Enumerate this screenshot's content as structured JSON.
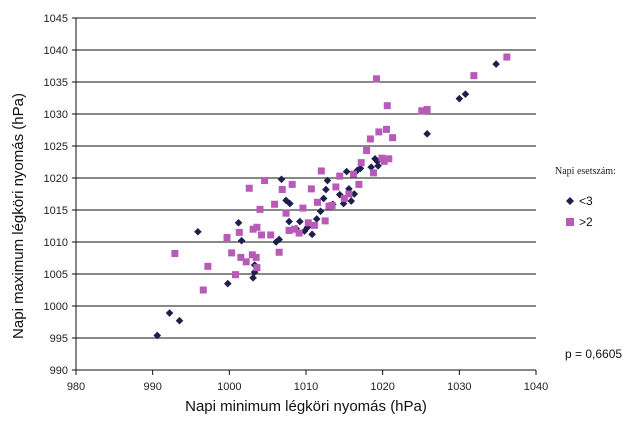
{
  "chart_data": {
    "type": "scatter",
    "xlabel": "Napi minimum légköri nyomás (hPa)",
    "ylabel": "Napi maximum légköri nyomás (hPa)",
    "xlim": [
      980,
      1040
    ],
    "ylim": [
      990,
      1045
    ],
    "x_ticks": [
      980,
      990,
      1000,
      1010,
      1020,
      1030,
      1040
    ],
    "y_ticks": [
      990,
      995,
      1000,
      1005,
      1010,
      1015,
      1020,
      1025,
      1030,
      1035,
      1040,
      1045
    ],
    "grid": "horizontal",
    "legend": {
      "title": "Napi esetszám:",
      "placement": "right"
    },
    "annotation": "p = 0,6605",
    "series": [
      {
        "name": "<3",
        "marker": "diamond",
        "color": "#1f1f4d",
        "points": [
          [
            990.6,
            995.4
          ],
          [
            992.2,
            998.9
          ],
          [
            993.5,
            997.7
          ],
          [
            995.9,
            1011.6
          ],
          [
            999.8,
            1003.5
          ],
          [
            1001.2,
            1013.0
          ],
          [
            1001.6,
            1010.2
          ],
          [
            1003.1,
            1004.4
          ],
          [
            1003.3,
            1005.3
          ],
          [
            1003.3,
            1006.4
          ],
          [
            1006.1,
            1010.0
          ],
          [
            1006.5,
            1010.4
          ],
          [
            1006.8,
            1019.8
          ],
          [
            1007.4,
            1016.5
          ],
          [
            1007.9,
            1016.0
          ],
          [
            1007.8,
            1013.2
          ],
          [
            1008.7,
            1012.1
          ],
          [
            1009.2,
            1013.2
          ],
          [
            1009.8,
            1011.7
          ],
          [
            1010.2,
            1012.3
          ],
          [
            1010.8,
            1011.2
          ],
          [
            1011.4,
            1013.6
          ],
          [
            1011.9,
            1014.8
          ],
          [
            1012.3,
            1016.8
          ],
          [
            1012.6,
            1018.2
          ],
          [
            1012.8,
            1019.6
          ],
          [
            1013.5,
            1015.9
          ],
          [
            1014.4,
            1017.4
          ],
          [
            1014.9,
            1016.0
          ],
          [
            1015.3,
            1021.0
          ],
          [
            1015.6,
            1018.3
          ],
          [
            1015.9,
            1016.4
          ],
          [
            1016.3,
            1017.5
          ],
          [
            1016.7,
            1021.2
          ],
          [
            1017.1,
            1021.5
          ],
          [
            1018.5,
            1021.7
          ],
          [
            1019.0,
            1023.0
          ],
          [
            1019.3,
            1022.6
          ],
          [
            1019.4,
            1021.9
          ],
          [
            1025.8,
            1026.9
          ],
          [
            1030.0,
            1032.4
          ],
          [
            1030.8,
            1033.1
          ],
          [
            1034.8,
            1037.8
          ]
        ]
      },
      {
        "name": ">2",
        "marker": "square",
        "color": "#b85ab8",
        "points": [
          [
            992.9,
            1008.2
          ],
          [
            996.6,
            1002.5
          ],
          [
            997.2,
            1006.2
          ],
          [
            999.7,
            1010.7
          ],
          [
            1000.3,
            1008.3
          ],
          [
            1000.8,
            1004.9
          ],
          [
            1001.3,
            1011.5
          ],
          [
            1001.5,
            1007.6
          ],
          [
            1002.2,
            1006.9
          ],
          [
            1002.6,
            1018.4
          ],
          [
            1003.0,
            1008.0
          ],
          [
            1003.1,
            1012.0
          ],
          [
            1003.5,
            1007.6
          ],
          [
            1003.6,
            1006.0
          ],
          [
            1003.6,
            1012.3
          ],
          [
            1004.0,
            1015.1
          ],
          [
            1004.2,
            1011.1
          ],
          [
            1004.6,
            1019.6
          ],
          [
            1005.4,
            1011.1
          ],
          [
            1005.9,
            1015.9
          ],
          [
            1006.5,
            1008.4
          ],
          [
            1006.9,
            1018.2
          ],
          [
            1007.4,
            1014.5
          ],
          [
            1007.8,
            1011.8
          ],
          [
            1008.2,
            1019.0
          ],
          [
            1008.5,
            1012.0
          ],
          [
            1009.1,
            1011.4
          ],
          [
            1009.6,
            1015.3
          ],
          [
            1010.3,
            1013.0
          ],
          [
            1010.7,
            1018.3
          ],
          [
            1011.1,
            1012.6
          ],
          [
            1011.5,
            1016.2
          ],
          [
            1012.0,
            1021.1
          ],
          [
            1012.5,
            1013.3
          ],
          [
            1013.0,
            1015.6
          ],
          [
            1013.4,
            1015.7
          ],
          [
            1013.9,
            1018.6
          ],
          [
            1014.4,
            1020.3
          ],
          [
            1015.0,
            1016.8
          ],
          [
            1015.6,
            1017.5
          ],
          [
            1016.2,
            1020.6
          ],
          [
            1016.9,
            1019.0
          ],
          [
            1017.2,
            1022.4
          ],
          [
            1017.9,
            1024.3
          ],
          [
            1018.4,
            1026.1
          ],
          [
            1018.8,
            1020.8
          ],
          [
            1019.2,
            1035.5
          ],
          [
            1019.5,
            1027.2
          ],
          [
            1019.9,
            1023.1
          ],
          [
            1020.2,
            1022.6
          ],
          [
            1020.5,
            1027.6
          ],
          [
            1020.6,
            1031.3
          ],
          [
            1020.8,
            1023.0
          ],
          [
            1021.3,
            1026.3
          ],
          [
            1025.1,
            1030.5
          ],
          [
            1025.8,
            1030.7
          ],
          [
            1031.9,
            1036.0
          ],
          [
            1036.2,
            1038.9
          ]
        ]
      }
    ]
  }
}
